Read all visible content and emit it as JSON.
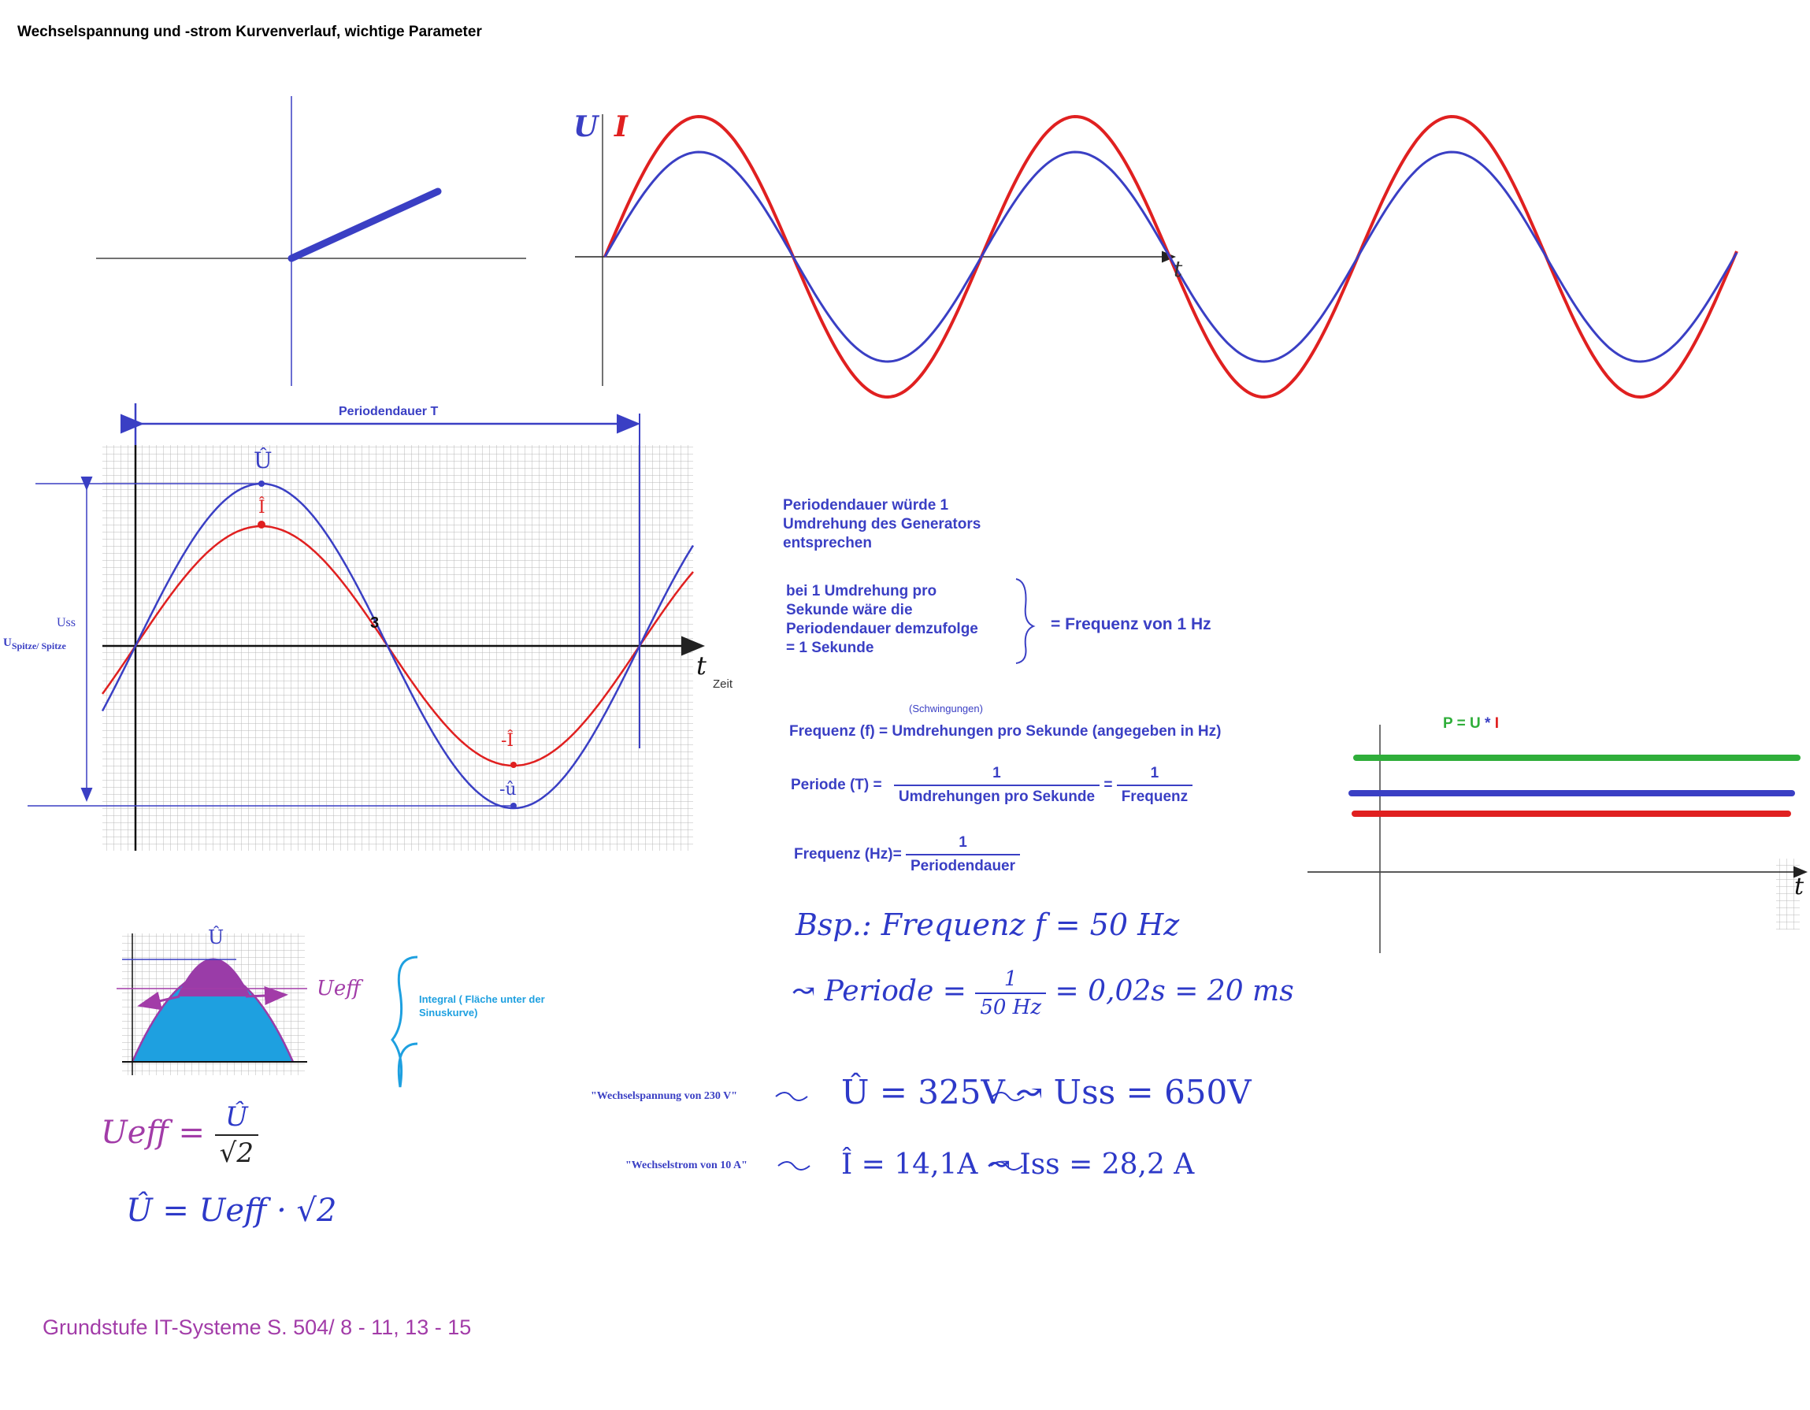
{
  "title": "Wechselspannung und -strom Kurvenverlauf, wichtige Parameter",
  "top_graph": {
    "u_label": "U",
    "i_label": "I",
    "t_label": "t"
  },
  "period_graph": {
    "period_label": "Periodendauer T",
    "u_hat": "Û",
    "i_hat": "Î",
    "minus_i_hat": "-Î",
    "minus_u_hat": "-û",
    "u_ss": "Uss",
    "u_spitze": "U",
    "u_spitze_sub": "Spitze/ Spitze",
    "marker_3": "3",
    "t_label": "t",
    "zeit_label": "Zeit"
  },
  "notes": {
    "period_note": [
      "Periodendauer würde 1",
      "Umdrehung des Generators",
      "entsprechen"
    ],
    "bei_note": [
      "bei 1 Umdrehung pro",
      "Sekunde wäre die",
      "Periodendauer demzufolge",
      "= 1 Sekunde"
    ],
    "frequency_result": "= Frequenz von 1 Hz",
    "schwingungen": "(Schwingungen)",
    "frequency_def": "Frequenz (f) = Umdrehungen pro Sekunde (angegeben in Hz)",
    "periode_label": "Periode (T) =",
    "frac1_num": "1",
    "frac1_den": "Umdrehungen pro Sekunde",
    "equals": "=",
    "frac2_num": "1",
    "frac2_den": "Frequenz",
    "freq_hz_label": "Frequenz (Hz)=",
    "frac3_num": "1",
    "frac3_den": "Periodendauer"
  },
  "handwritten": {
    "bsp": "Bsp.: Frequenz  f = 50 Hz",
    "periode_prefix": "↝ Periode =",
    "periode_num": "1",
    "periode_den": "50 Hz",
    "periode_result": "= 0,02s = 20 ms",
    "u_hat_eq": "Û = 325V  ↝  Uss = 650V",
    "i_hat_eq": "Î = 14,1A  ↝  Iss = 28,2 A",
    "ueff_label": "Ueff",
    "formula1_left": "Ueff =",
    "formula1_num": "Û",
    "formula1_den": "√2",
    "formula2": "Û = Ueff · √2"
  },
  "quotes": {
    "voltage": "\"Wechselspannung von 230 V\"",
    "current": "\"Wechselstrom von 10 A\""
  },
  "integral_note": "Integral ( Fläche unter der Sinuskurve)",
  "power": {
    "label_p": "P",
    "label_eq": " = U ",
    "label_star": "* ",
    "label_i": "I",
    "t_label": "t"
  },
  "footer": "Grundstufe IT-Systeme S. 504/  8  - 11, 13 - 15",
  "colors": {
    "blue": "#3a3fc4",
    "red": "#e02020",
    "green": "#2fae3a",
    "purple": "#a23ca8",
    "cyan": "#1ea0e0"
  }
}
